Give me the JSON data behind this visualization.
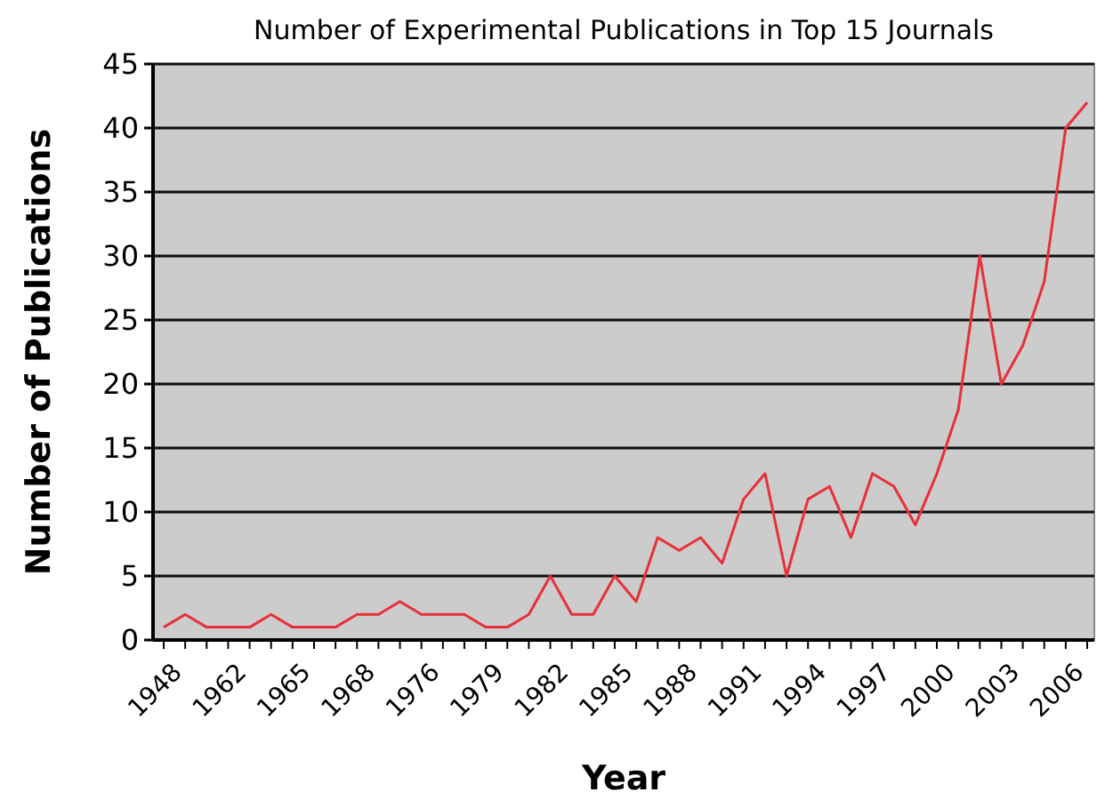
{
  "chart_data": {
    "type": "line",
    "title": "Number of Experimental Publications in Top 15 Journals",
    "xlabel": "Year",
    "ylabel": "Number of Publications",
    "categories": [
      "1948",
      null,
      null,
      "1962",
      null,
      null,
      "1965",
      null,
      null,
      "1968",
      null,
      null,
      "1976",
      null,
      null,
      "1979",
      null,
      null,
      "1982",
      null,
      null,
      "1985",
      null,
      null,
      "1988",
      null,
      null,
      "1991",
      null,
      null,
      "1994",
      null,
      null,
      "1997",
      null,
      null,
      "2000",
      null,
      null,
      "2003",
      null,
      null,
      "2006",
      null
    ],
    "series": [
      {
        "color": "#e8303a",
        "values": [
          1,
          2,
          1,
          1,
          1,
          2,
          1,
          1,
          1,
          2,
          2,
          3,
          2,
          2,
          2,
          1,
          1,
          2,
          5,
          2,
          2,
          5,
          3,
          8,
          7,
          8,
          6,
          11,
          13,
          5,
          11,
          12,
          8,
          13,
          12,
          9,
          13,
          18,
          30,
          20,
          23,
          28,
          40,
          42
        ]
      }
    ],
    "ylim": [
      0,
      45
    ],
    "yticks": [
      0,
      5,
      10,
      15,
      20,
      25,
      30,
      35,
      40,
      45
    ],
    "grid": "y",
    "marker": "none",
    "line_style": "solid"
  }
}
